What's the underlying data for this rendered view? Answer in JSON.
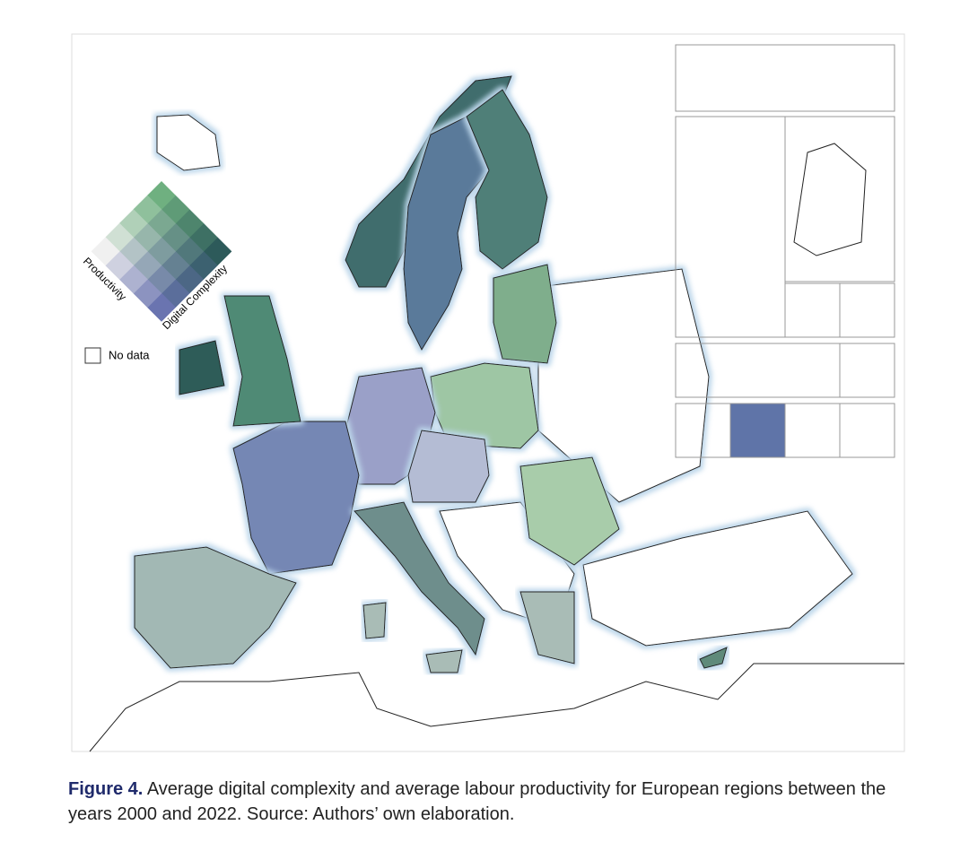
{
  "legend": {
    "x_label": "Productivity",
    "y_label": "Digital Complexity",
    "no_data": "No data"
  },
  "caption": {
    "label": "Figure 4.",
    "text": "Average digital complexity and average labour productivity for European regions between the years 2000 and 2022. Source: Authors’ own elaboration."
  }
}
